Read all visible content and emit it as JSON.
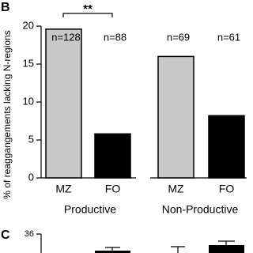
{
  "chart_data": {
    "type": "bar",
    "panel_label": "B",
    "ylabel": "% of reaggangements lacking N-regions",
    "categories": [
      "MZ",
      "FO"
    ],
    "colors": [
      "#c8c8c8",
      "#000000"
    ],
    "series": [
      {
        "name": "Productive",
        "values": [
          19.6,
          5.8
        ],
        "n_labels": [
          "n=128",
          "n=88"
        ]
      },
      {
        "name": "Non-Productive",
        "values": [
          16,
          8.2
        ],
        "n_labels": [
          "n=69",
          "n=61"
        ]
      }
    ],
    "significance": "**",
    "ylim": [
      0,
      20
    ],
    "yticks": [
      0,
      5,
      10,
      15,
      20
    ],
    "next_panel": {
      "panel_label": "C",
      "yticks": [
        36
      ]
    }
  }
}
